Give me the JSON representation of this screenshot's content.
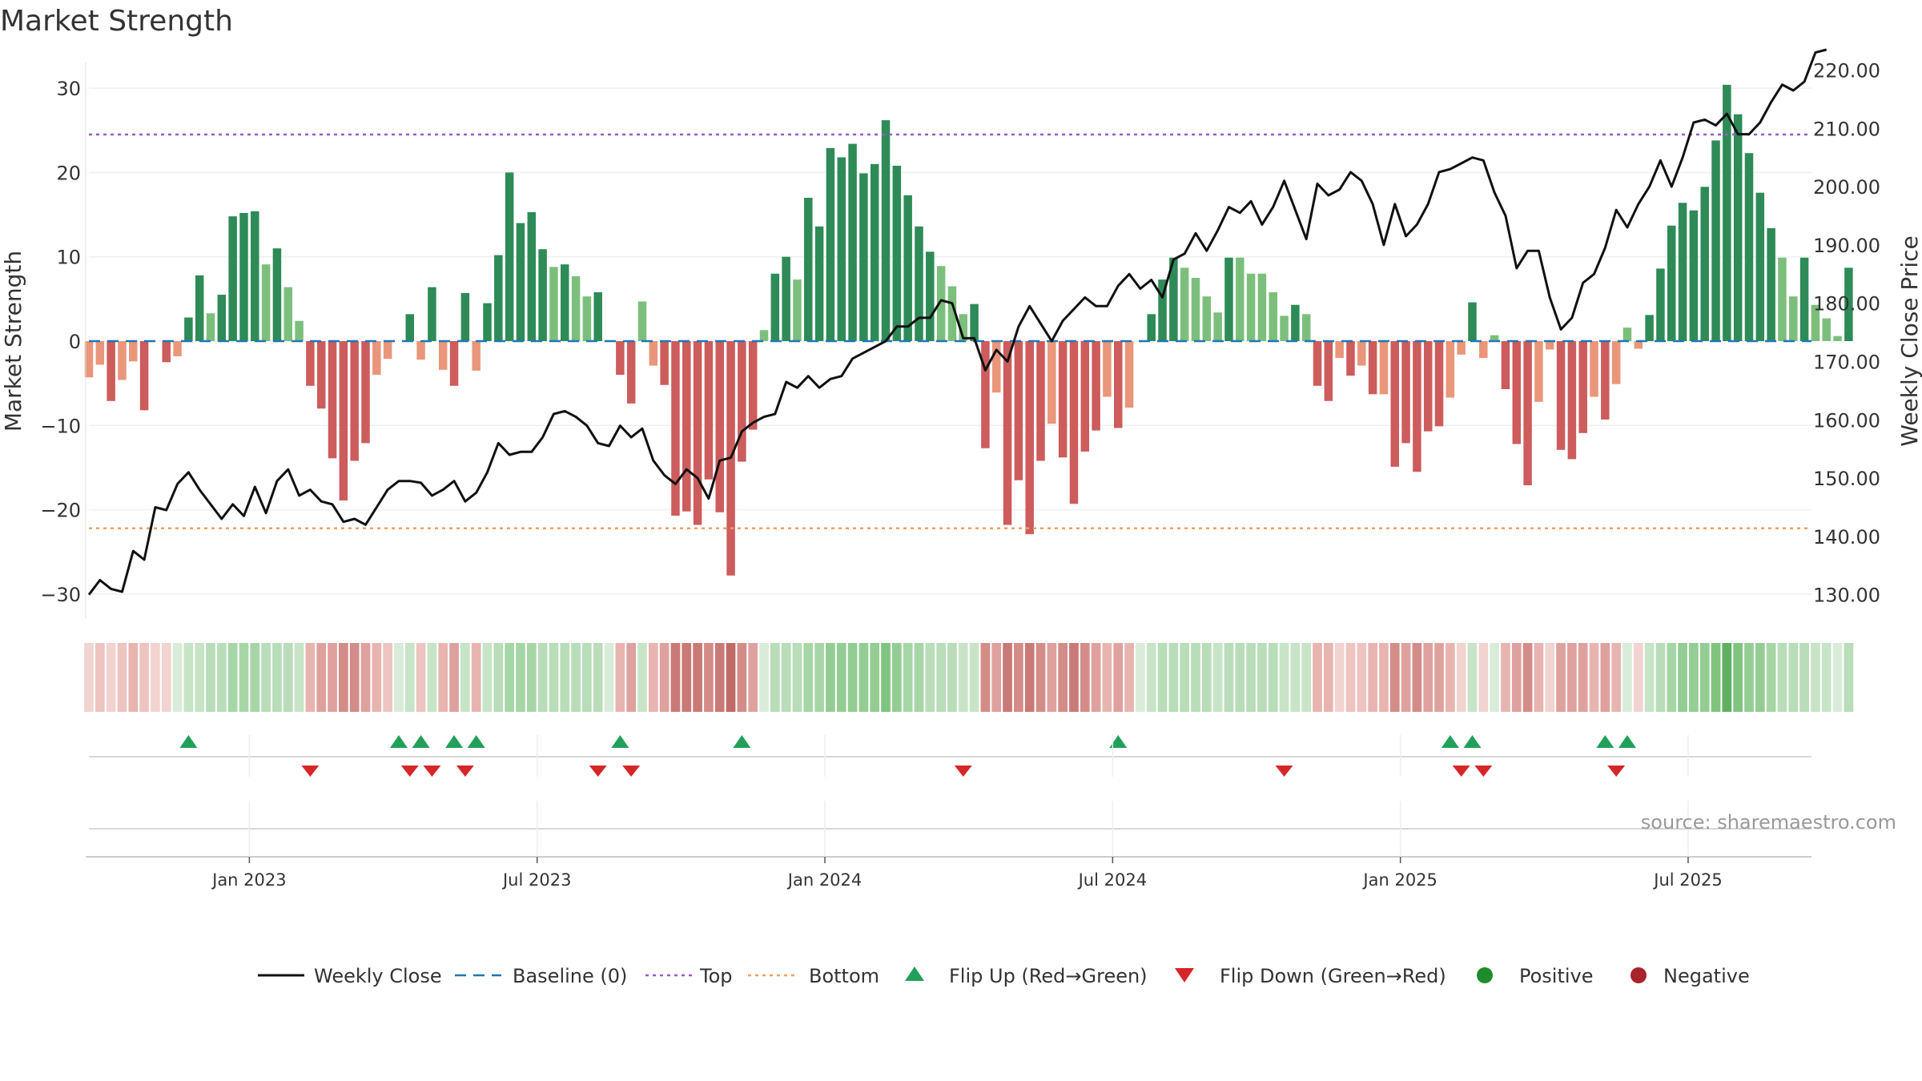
{
  "chart_data": {
    "type": "bar+line",
    "title": "Market Strength",
    "ylabel_left": "Market Strength",
    "ylabel_right": "Weekly Close Price",
    "ylim_left": [
      -33,
      33
    ],
    "ylim_right": [
      126,
      222
    ],
    "yticks_left": [
      "30",
      "20",
      "10",
      "0",
      "−10",
      "−20",
      "−30"
    ],
    "ytick_values_left": [
      30,
      20,
      10,
      0,
      -10,
      -20,
      -30
    ],
    "yticks_right": [
      "220.00",
      "210.00",
      "200.00",
      "190.00",
      "180.00",
      "170.00",
      "160.00",
      "150.00",
      "140.00",
      "130.00"
    ],
    "ytick_values_right": [
      220,
      210,
      200,
      190,
      180,
      170,
      160,
      150,
      140,
      130
    ],
    "x_ticks": [
      "Jan 2023",
      "Jul 2023",
      "Jan 2024",
      "Jul 2024",
      "Jan 2025",
      "Jul 2025"
    ],
    "x_tick_weeks": [
      14.5,
      40.5,
      66.5,
      92.5,
      118.5,
      144.5
    ],
    "top_level": 24.5,
    "bottom_level": -22.2,
    "baseline": 0,
    "strength": [
      -4.3,
      -2.8,
      -7.1,
      -4.6,
      -2.4,
      -8.2,
      0,
      -2.5,
      -1.8,
      2.8,
      7.8,
      3.3,
      5.5,
      14.8,
      15.2,
      15.4,
      9.1,
      11,
      6.4,
      2.4,
      -5.3,
      -8,
      -13.9,
      -18.9,
      -14.2,
      -12.1,
      -4,
      -2.1,
      0,
      3.2,
      -2.2,
      6.4,
      -3.4,
      -5.3,
      5.7,
      -3.5,
      4.5,
      10.2,
      20,
      14,
      15.3,
      10.9,
      8.8,
      9.1,
      7.7,
      5.3,
      5.8,
      0,
      -4,
      -7.4,
      4.7,
      -2.9,
      -5.2,
      -20.7,
      -20.2,
      -21.8,
      -16.4,
      -20.3,
      -27.8,
      -14.3,
      -10.5,
      1.3,
      8,
      10,
      7.3,
      17,
      13.6,
      22.9,
      21.8,
      23.4,
      19.9,
      21,
      26.2,
      20.8,
      17.3,
      13.6,
      10.6,
      8.9,
      6.5,
      3.2,
      4.4,
      -12.7,
      -6.1,
      -21.8,
      -16.5,
      -22.9,
      -14.2,
      -9.8,
      -13.8,
      -19.3,
      -13.1,
      -10.6,
      -6.6,
      -10.3,
      -7.9,
      0,
      3.2,
      7.3,
      9.9,
      8.7,
      7.5,
      5.3,
      3.4,
      9.9,
      9.9,
      8,
      8,
      5.8,
      3,
      4.3,
      3.2,
      -5.3,
      -7.1,
      -2,
      -4.1,
      -2.9,
      -6.3,
      -6.3,
      -14.9,
      -12.1,
      -15.5,
      -10.7,
      -10.1,
      -6.7,
      -1.6,
      4.6,
      -2,
      0.7,
      -5.7,
      -12.2,
      -17.1,
      -7.2,
      -1,
      -12.9,
      -14,
      -10.9,
      -6.6,
      -9.3,
      -5.1,
      1.6,
      -0.9,
      3.1,
      8.6,
      13.7,
      16.4,
      15.5,
      18.3,
      23.8,
      30.4,
      26.9,
      22.3,
      17.6,
      13.4,
      9.9,
      5.3,
      9.9,
      4.3,
      2.7,
      0.6,
      8.7
    ],
    "weekly_close": [
      130,
      132.5,
      131,
      130.5,
      137.5,
      136,
      145,
      144.5,
      149,
      151,
      148,
      145.5,
      143,
      145.5,
      143.5,
      148.5,
      144,
      149.5,
      151.5,
      147,
      148,
      146,
      145.5,
      142.5,
      143,
      142,
      145,
      148,
      149.5,
      149.5,
      149.2,
      147,
      148,
      149.5,
      146,
      147.5,
      151,
      156,
      154,
      154.5,
      154.5,
      157,
      161,
      161.5,
      160.5,
      159,
      156,
      155.5,
      159,
      157,
      158.5,
      153,
      150.5,
      149,
      151.5,
      150,
      146.5,
      153,
      153.5,
      158,
      159.5,
      160.5,
      161,
      166.5,
      165.5,
      167.5,
      165.5,
      167,
      167.5,
      170.5,
      171.5,
      172.5,
      173.5,
      176,
      176,
      177.5,
      177.5,
      180.5,
      180,
      174,
      174,
      168.5,
      172,
      170,
      176,
      179.5,
      176.5,
      173.5,
      177,
      179,
      181,
      179.5,
      179.5,
      183,
      185,
      182.5,
      184,
      181,
      187.5,
      188.5,
      192,
      189,
      192.5,
      196.5,
      195.5,
      197.5,
      193.5,
      196.5,
      201,
      196,
      191,
      200.5,
      198.5,
      199.5,
      202.5,
      201,
      197,
      190,
      197,
      191.5,
      193.5,
      197,
      202.5,
      203,
      204,
      205,
      204.5,
      199,
      195,
      186,
      189,
      189,
      181,
      175.5,
      177.5,
      183.5,
      185,
      189.5,
      196,
      193,
      197,
      200,
      204.5,
      200,
      205,
      211,
      211.5,
      210.5,
      212.5,
      209,
      209,
      211,
      214.5,
      217.5,
      216.5,
      218,
      223,
      223.5
    ],
    "regime_strip_colors": [
      "#f1d3d0",
      "#edc4c0",
      "#f1d3d0",
      "#edc4c0",
      "#e8b4b0",
      "#edc4c0",
      "#f1d3d0",
      "#f1d3d0",
      "#d9ecd9",
      "#c7e4c7",
      "#c7e4c7",
      "#b8ddb8",
      "#b8ddb8",
      "#a6d6a6",
      "#a6d6a6",
      "#a6d6a6",
      "#b8ddb8",
      "#b8ddb8",
      "#b8ddb8",
      "#c7e4c7",
      "#e8b4b0",
      "#dea19e",
      "#dea19e",
      "#d38c88",
      "#d38c88",
      "#dea19e",
      "#e8b4b0",
      "#edc4c0",
      "#d9ecd9",
      "#c7e4c7",
      "#edc4c0",
      "#c7e4c7",
      "#e8b4b0",
      "#dea19e",
      "#c7e4c7",
      "#e8b4b0",
      "#c7e4c7",
      "#b8ddb8",
      "#a6d6a6",
      "#a6d6a6",
      "#a6d6a6",
      "#b8ddb8",
      "#b8ddb8",
      "#b8ddb8",
      "#b8ddb8",
      "#b8ddb8",
      "#b8ddb8",
      "#d9ecd9",
      "#e8b4b0",
      "#dea19e",
      "#c7e4c7",
      "#e8b4b0",
      "#dea19e",
      "#c97a76",
      "#c97a76",
      "#c97a76",
      "#d38c88",
      "#c97a76",
      "#c06b67",
      "#d38c88",
      "#dea19e",
      "#d9ecd9",
      "#b8ddb8",
      "#b8ddb8",
      "#b8ddb8",
      "#a6d6a6",
      "#a6d6a6",
      "#93cd93",
      "#93cd93",
      "#93cd93",
      "#93cd93",
      "#93cd93",
      "#7fc47f",
      "#93cd93",
      "#a6d6a6",
      "#a6d6a6",
      "#b8ddb8",
      "#b8ddb8",
      "#b8ddb8",
      "#c7e4c7",
      "#c7e4c7",
      "#d38c88",
      "#dea19e",
      "#c97a76",
      "#d38c88",
      "#c97a76",
      "#d38c88",
      "#dea19e",
      "#d38c88",
      "#c97a76",
      "#d38c88",
      "#dea19e",
      "#e8b4b0",
      "#dea19e",
      "#e8b4b0",
      "#d9ecd9",
      "#c7e4c7",
      "#b8ddb8",
      "#b8ddb8",
      "#b8ddb8",
      "#b8ddb8",
      "#b8ddb8",
      "#c7e4c7",
      "#b8ddb8",
      "#b8ddb8",
      "#b8ddb8",
      "#b8ddb8",
      "#b8ddb8",
      "#c7e4c7",
      "#c7e4c7",
      "#c7e4c7",
      "#e8b4b0",
      "#e8b4b0",
      "#f1d3d0",
      "#edc4c0",
      "#edc4c0",
      "#e8b4b0",
      "#e8b4b0",
      "#d38c88",
      "#dea19e",
      "#d38c88",
      "#dea19e",
      "#dea19e",
      "#e8b4b0",
      "#f1d3d0",
      "#c7e4c7",
      "#f1d3d0",
      "#d9ecd9",
      "#e8b4b0",
      "#dea19e",
      "#d38c88",
      "#e8b4b0",
      "#f1d3d0",
      "#dea19e",
      "#dea19e",
      "#dea19e",
      "#e8b4b0",
      "#dea19e",
      "#e8b4b0",
      "#d9ecd9",
      "#f1d3d0",
      "#c7e4c7",
      "#b8ddb8",
      "#a6d6a6",
      "#93cd93",
      "#93cd93",
      "#93cd93",
      "#7fc47f",
      "#5fb15f",
      "#7fc47f",
      "#93cd93",
      "#93cd93",
      "#a6d6a6",
      "#b8ddb8",
      "#b8ddb8",
      "#b8ddb8",
      "#c7e4c7",
      "#c7e4c7",
      "#d9ecd9",
      "#b8ddb8"
    ],
    "flip_up_weeks": [
      9,
      28,
      30,
      33,
      35,
      48,
      59,
      93,
      123,
      125,
      137,
      139
    ],
    "flip_down_weeks": [
      20,
      29,
      31,
      34,
      46,
      49,
      79,
      108,
      124,
      126,
      138
    ],
    "bar_colors": {
      "strong_positive": "#2e8b57",
      "weak_positive": "#7cbf7c",
      "strong_negative": "#cd5c5c",
      "weak_negative": "#e9967a"
    },
    "line_color": "#111111",
    "top_color": "#9b59d0",
    "bottom_color": "#f0a060",
    "baseline_color": "#1f77b4",
    "flip_up_color": "#22a05a",
    "flip_down_color": "#d62728",
    "positive_color": "#1e8c2c",
    "negative_color": "#a8232a"
  },
  "watermark": "source: sharemaestro.com",
  "legend": [
    {
      "key": "line",
      "label": "Weekly Close"
    },
    {
      "key": "baseline",
      "label": "Baseline (0)"
    },
    {
      "key": "top",
      "label": "Top"
    },
    {
      "key": "bottom",
      "label": "Bottom"
    },
    {
      "key": "flip-up",
      "label": "Flip Up (Red→Green)"
    },
    {
      "key": "flip-down",
      "label": "Flip Down (Green→Red)"
    },
    {
      "key": "positive",
      "label": "Positive"
    },
    {
      "key": "negative",
      "label": "Negative"
    }
  ]
}
